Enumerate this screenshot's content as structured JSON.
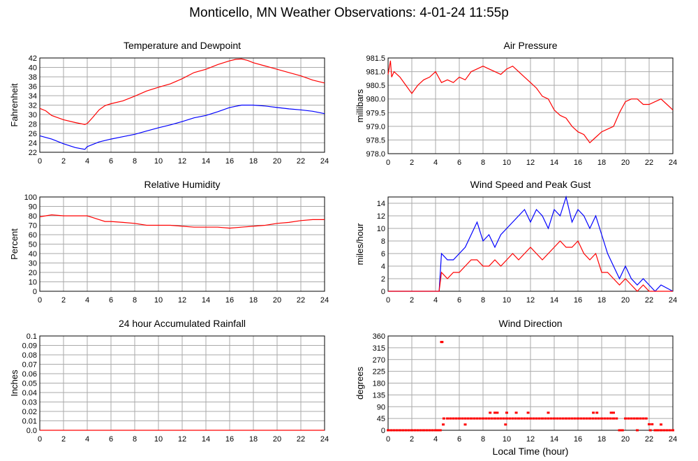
{
  "title": "Monticello, MN Weather Observations: 4-01-24 11:55p",
  "xlabel": "Local Time (hour)",
  "colors": {
    "red": "#ff0000",
    "blue": "#0000ff",
    "grid": "#aaaaaa"
  },
  "chart_data": [
    {
      "type": "line",
      "title": "Temperature and Dewpoint",
      "ylabel": "Fahrenheit",
      "xlim": [
        0,
        24
      ],
      "ylim": [
        22,
        42
      ],
      "xticks": [
        "0",
        "2",
        "4",
        "6",
        "8",
        "10",
        "12",
        "14",
        "16",
        "18",
        "20",
        "22",
        "24"
      ],
      "yticks": [
        "22",
        "24",
        "26",
        "28",
        "30",
        "32",
        "34",
        "36",
        "38",
        "40",
        "42"
      ],
      "grid": true,
      "series": [
        {
          "color": "#ff0000",
          "x": [
            0,
            0.5,
            1,
            2,
            3,
            3.8,
            4,
            4.5,
            5,
            5.5,
            6,
            7,
            8,
            9,
            10,
            11,
            12,
            13,
            14,
            15,
            16,
            16.5,
            17,
            17.5,
            18,
            19,
            20,
            21,
            22,
            23,
            24
          ],
          "y": [
            31.3,
            30.8,
            29.8,
            28.9,
            28.3,
            27.9,
            28.1,
            29.5,
            31.0,
            31.9,
            32.3,
            32.9,
            33.9,
            35.0,
            35.8,
            36.5,
            37.6,
            38.9,
            39.6,
            40.6,
            41.4,
            41.7,
            41.8,
            41.5,
            41.0,
            40.3,
            39.6,
            38.9,
            38.2,
            37.3,
            36.7
          ]
        },
        {
          "color": "#0000ff",
          "x": [
            0,
            1,
            2,
            3,
            3.8,
            4,
            5,
            6,
            7,
            8,
            9,
            10,
            11,
            12,
            13,
            14,
            15,
            16,
            17,
            18,
            19,
            20,
            21,
            22,
            23,
            24
          ],
          "y": [
            25.5,
            24.8,
            23.8,
            23.0,
            22.6,
            23.2,
            24.2,
            24.8,
            25.3,
            25.8,
            26.5,
            27.2,
            27.8,
            28.5,
            29.3,
            29.8,
            30.6,
            31.5,
            32.0,
            32.0,
            31.8,
            31.5,
            31.2,
            31.0,
            30.7,
            30.2
          ]
        }
      ]
    },
    {
      "type": "line",
      "title": "Air Pressure",
      "ylabel": "millibars",
      "xlim": [
        0,
        24
      ],
      "ylim": [
        978.0,
        981.5
      ],
      "xticks": [
        "0",
        "2",
        "4",
        "6",
        "8",
        "10",
        "12",
        "14",
        "16",
        "18",
        "20",
        "22",
        "24"
      ],
      "yticks": [
        "978.0",
        "978.5",
        "979.0",
        "979.5",
        "980.0",
        "980.5",
        "981.0",
        "981.5"
      ],
      "grid": true,
      "series": [
        {
          "color": "#ff0000",
          "x": [
            0,
            0.2,
            0.3,
            0.5,
            1,
            1.5,
            2,
            2.5,
            3,
            3.5,
            4,
            4.5,
            5,
            5.5,
            6,
            6.5,
            7,
            7.5,
            8,
            8.5,
            9,
            9.5,
            10,
            10.5,
            11,
            11.5,
            12,
            12.5,
            13,
            13.5,
            14,
            14.5,
            15,
            15.5,
            16,
            16.5,
            17,
            17.5,
            18,
            18.5,
            19,
            19.5,
            20,
            20.5,
            21,
            21.5,
            22,
            22.5,
            23,
            23.5,
            24
          ],
          "y": [
            980.9,
            981.4,
            980.8,
            981.0,
            980.8,
            980.5,
            980.2,
            980.5,
            980.7,
            980.8,
            981.0,
            980.6,
            980.7,
            980.6,
            980.8,
            980.7,
            981.0,
            981.1,
            981.2,
            981.1,
            981.0,
            980.9,
            981.1,
            981.2,
            981.0,
            980.8,
            980.6,
            980.4,
            980.1,
            980.0,
            979.6,
            979.4,
            979.3,
            979.0,
            978.8,
            978.7,
            978.4,
            978.6,
            978.8,
            978.9,
            979.0,
            979.5,
            979.9,
            980.0,
            980.0,
            979.8,
            979.8,
            979.9,
            980.0,
            979.8,
            979.6
          ]
        }
      ]
    },
    {
      "type": "line",
      "title": "Relative Humidity",
      "ylabel": "Percent",
      "xlim": [
        0,
        24
      ],
      "ylim": [
        0,
        100
      ],
      "xticks": [
        "0",
        "2",
        "4",
        "6",
        "8",
        "10",
        "12",
        "14",
        "16",
        "18",
        "20",
        "22",
        "24"
      ],
      "yticks": [
        "0",
        "10",
        "20",
        "30",
        "40",
        "50",
        "60",
        "70",
        "80",
        "90",
        "100"
      ],
      "grid": true,
      "series": [
        {
          "color": "#ff0000",
          "x": [
            0,
            0.5,
            1,
            2,
            3,
            4,
            4.5,
            5,
            5.5,
            6,
            7,
            8,
            9,
            10,
            11,
            12,
            13,
            14,
            15,
            16,
            17,
            18,
            19,
            20,
            21,
            22,
            23,
            24
          ],
          "y": [
            79,
            80,
            81,
            80,
            80,
            80,
            78,
            76,
            74,
            74,
            73,
            72,
            70,
            70,
            70,
            69,
            68,
            68,
            68,
            67,
            68,
            69,
            70,
            72,
            73,
            75,
            76,
            76
          ]
        }
      ]
    },
    {
      "type": "line",
      "title": "Wind Speed and Peak Gust",
      "ylabel": "miles/hour",
      "xlim": [
        0,
        24
      ],
      "ylim": [
        0,
        15
      ],
      "xticks": [
        "0",
        "2",
        "4",
        "6",
        "8",
        "10",
        "12",
        "14",
        "16",
        "18",
        "20",
        "22",
        "24"
      ],
      "yticks": [
        "0",
        "2",
        "4",
        "6",
        "8",
        "10",
        "12",
        "14"
      ],
      "grid": true,
      "series": [
        {
          "color": "#0000ff",
          "x": [
            0,
            4.3,
            4.5,
            5,
            5.5,
            6,
            6.5,
            7,
            7.5,
            8,
            8.5,
            9,
            9.5,
            10,
            10.5,
            11,
            11.5,
            12,
            12.5,
            13,
            13.5,
            14,
            14.5,
            15,
            15.5,
            16,
            16.5,
            17,
            17.5,
            18,
            18.5,
            19,
            19.5,
            20,
            20.5,
            21,
            21.5,
            22,
            22.5,
            23,
            24
          ],
          "y": [
            0,
            0,
            6,
            5,
            5,
            6,
            7,
            9,
            11,
            8,
            9,
            7,
            9,
            10,
            11,
            12,
            13,
            11,
            13,
            12,
            10,
            13,
            12,
            15,
            11,
            13,
            12,
            10,
            12,
            9,
            6,
            4,
            2,
            4,
            2,
            1,
            2,
            1,
            0,
            1,
            0
          ]
        },
        {
          "color": "#ff0000",
          "x": [
            0,
            4.3,
            4.5,
            5,
            5.5,
            6,
            6.5,
            7,
            7.5,
            8,
            8.5,
            9,
            9.5,
            10,
            10.5,
            11,
            11.5,
            12,
            12.5,
            13,
            13.5,
            14,
            14.5,
            15,
            15.5,
            16,
            16.5,
            17,
            17.5,
            18,
            18.5,
            19,
            19.5,
            20,
            20.5,
            21,
            21.5,
            22,
            22.5,
            23,
            24
          ],
          "y": [
            0,
            0,
            3,
            2,
            3,
            3,
            4,
            5,
            5,
            4,
            4,
            5,
            4,
            5,
            6,
            5,
            6,
            7,
            6,
            5,
            6,
            7,
            8,
            7,
            7,
            8,
            6,
            5,
            6,
            3,
            3,
            2,
            1,
            2,
            1,
            0,
            1,
            0,
            0,
            0,
            0
          ]
        }
      ]
    },
    {
      "type": "line",
      "title": "24 hour Accumulated Rainfall",
      "ylabel": "Inches",
      "xlim": [
        0,
        24
      ],
      "ylim": [
        0,
        0.1
      ],
      "xticks": [
        "0",
        "2",
        "4",
        "6",
        "8",
        "10",
        "12",
        "14",
        "16",
        "18",
        "20",
        "22",
        "24"
      ],
      "yticks": [
        "0.0",
        "0.01",
        "0.02",
        "0.03",
        "0.04",
        "0.05",
        "0.06",
        "0.07",
        "0.08",
        "0.09",
        "0.1"
      ],
      "grid": true,
      "series": [
        {
          "color": "#ff0000",
          "x": [
            0,
            24
          ],
          "y": [
            0,
            0
          ]
        }
      ]
    },
    {
      "type": "scatter",
      "title": "Wind Direction",
      "ylabel": "degrees",
      "xlim": [
        0,
        24
      ],
      "ylim": [
        0,
        360
      ],
      "xticks": [
        "0",
        "2",
        "4",
        "6",
        "8",
        "10",
        "12",
        "14",
        "16",
        "18",
        "20",
        "22",
        "24"
      ],
      "yticks": [
        "0",
        "45",
        "90",
        "135",
        "180",
        "225",
        "270",
        "315",
        "360"
      ],
      "grid": true,
      "series": [
        {
          "color": "#ff0000",
          "x": [
            0,
            0.25,
            0.5,
            0.75,
            1,
            1.25,
            1.5,
            1.75,
            2,
            2.25,
            2.5,
            2.75,
            3,
            3.25,
            3.5,
            3.75,
            4,
            4.2,
            4.4,
            4.5,
            4.55,
            4.7,
            5,
            5.25,
            5.5,
            5.75,
            6,
            6.25,
            6.5,
            6.75,
            7,
            7.25,
            7.5,
            7.75,
            8,
            8.25,
            8.5,
            8.75,
            9,
            9.25,
            9.5,
            9.75,
            10,
            10.25,
            10.5,
            10.75,
            11,
            11.25,
            11.5,
            11.75,
            12,
            12.25,
            12.5,
            12.75,
            13,
            13.25,
            13.5,
            13.75,
            14,
            14.25,
            14.5,
            14.75,
            15,
            15.25,
            15.5,
            15.75,
            16,
            16.25,
            16.5,
            16.75,
            17,
            17.25,
            17.5,
            17.75,
            18,
            18.25,
            18.5,
            18.75,
            19,
            19.25,
            19.5,
            19.75,
            20,
            20.25,
            20.5,
            20.75,
            21,
            21.25,
            21.5,
            21.75,
            22,
            22.25,
            22.5,
            22.75,
            23,
            23.25,
            23.5,
            23.75,
            24,
            8.6,
            9.0,
            9.2,
            10.0,
            10.8,
            11.8,
            13.5,
            17.3,
            17.6,
            18.8,
            19.0,
            19.6,
            22.1,
            22.6,
            4.65,
            6.5,
            9.9,
            21.0,
            23.0
          ],
          "y": [
            0,
            0,
            0,
            0,
            0,
            0,
            0,
            0,
            0,
            0,
            0,
            0,
            0,
            0,
            0,
            0,
            0,
            0,
            0,
            337,
            337,
            45,
            45,
            45,
            45,
            45,
            45,
            45,
            45,
            45,
            45,
            45,
            45,
            45,
            45,
            45,
            45,
            45,
            45,
            45,
            45,
            45,
            45,
            45,
            45,
            45,
            45,
            45,
            45,
            45,
            45,
            45,
            45,
            45,
            45,
            45,
            45,
            45,
            45,
            45,
            45,
            45,
            45,
            45,
            45,
            45,
            45,
            45,
            45,
            45,
            45,
            45,
            45,
            45,
            45,
            45,
            45,
            45,
            45,
            45,
            0,
            0,
            45,
            45,
            45,
            45,
            45,
            45,
            45,
            45,
            23,
            23,
            0,
            0,
            0,
            0,
            0,
            0,
            0,
            67,
            67,
            67,
            67,
            67,
            67,
            67,
            67,
            67,
            67,
            67,
            0,
            0,
            0,
            22,
            22,
            22,
            0,
            22
          ]
        }
      ]
    }
  ]
}
